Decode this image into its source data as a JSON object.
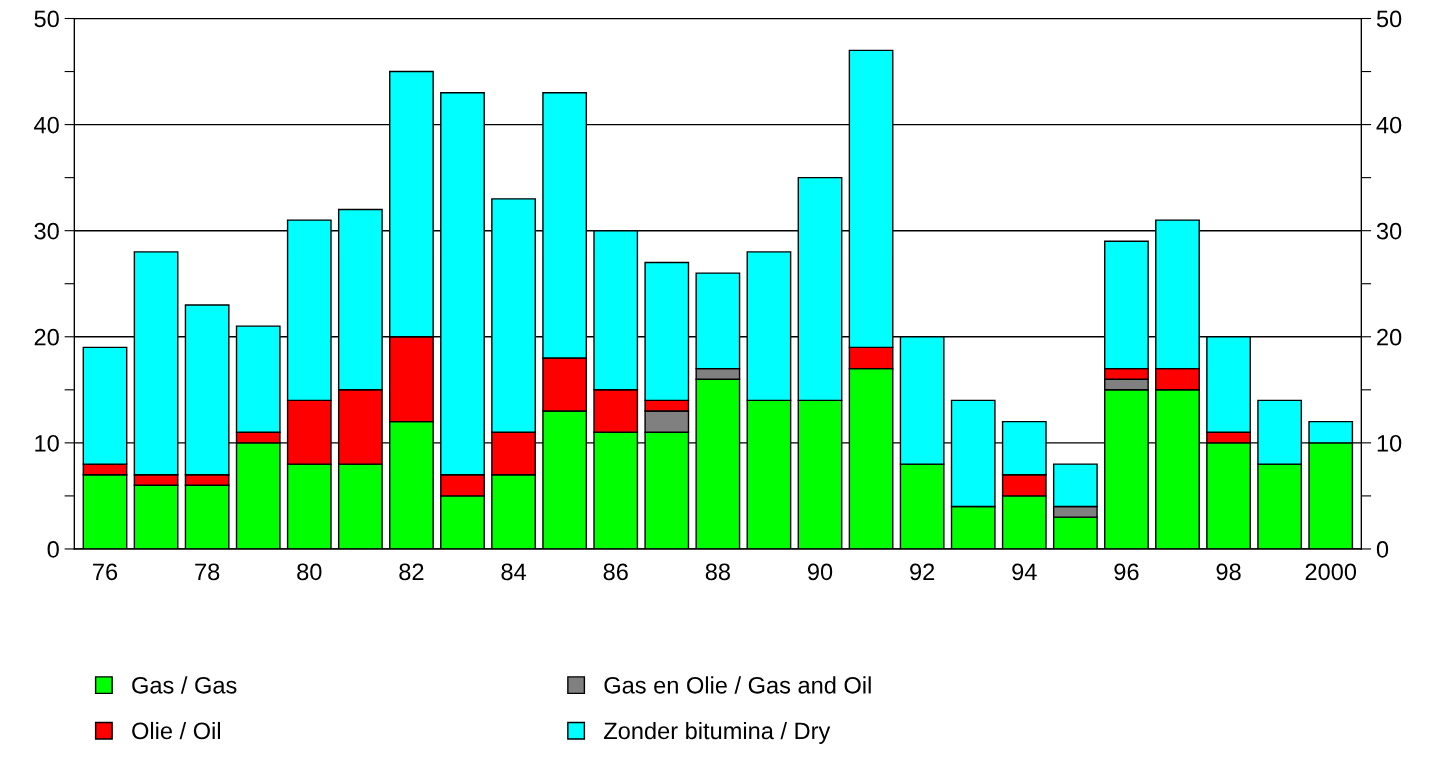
{
  "chart_data": {
    "type": "bar",
    "stacked": true,
    "categories": [
      "76",
      null,
      "78",
      null,
      "80",
      null,
      "82",
      null,
      "84",
      null,
      "86",
      null,
      "88",
      null,
      "90",
      null,
      "92",
      null,
      "94",
      null,
      "96",
      null,
      "98",
      null,
      "2000"
    ],
    "series": [
      {
        "name": "Gas / Gas",
        "color": "#00ff00",
        "values": [
          7,
          6,
          6,
          10,
          8,
          8,
          12,
          5,
          7,
          13,
          11,
          11,
          16,
          14,
          14,
          17,
          8,
          4,
          5,
          3,
          15,
          15,
          10,
          8,
          10
        ]
      },
      {
        "name": "Gas en Olie / Gas and Oil",
        "color": "#808080",
        "values": [
          null,
          null,
          null,
          null,
          null,
          null,
          null,
          null,
          null,
          null,
          null,
          2,
          1,
          null,
          null,
          null,
          null,
          null,
          null,
          1,
          1,
          null,
          null,
          null,
          null
        ]
      },
      {
        "name": "Olie / Oil",
        "color": "#ff0000",
        "values": [
          1,
          1,
          1,
          1,
          6,
          7,
          8,
          2,
          4,
          5,
          4,
          1,
          null,
          null,
          null,
          2,
          null,
          null,
          2,
          null,
          1,
          2,
          1,
          null,
          null
        ]
      },
      {
        "name": "Zonder bitumina / Dry",
        "color": "#00ffff",
        "values": [
          11,
          21,
          16,
          10,
          17,
          17,
          25,
          36,
          22,
          25,
          15,
          13,
          9,
          14,
          21,
          28,
          12,
          10,
          5,
          4,
          12,
          14,
          9,
          6,
          2
        ]
      }
    ],
    "ylim": [
      0,
      50
    ],
    "yticks": [
      0,
      {
        "value": 5,
        "label": null
      },
      10,
      {
        "value": 15,
        "label": null
      },
      20,
      {
        "value": 25,
        "label": null
      },
      30,
      {
        "value": 35,
        "label": null
      },
      40,
      {
        "value": 45,
        "label": null
      },
      50
    ],
    "y2lim": [
      0,
      50
    ],
    "y2ticks": [
      0,
      {
        "value": 5,
        "label": null
      },
      10,
      {
        "value": 15,
        "label": null
      },
      20,
      {
        "value": 25,
        "label": null
      },
      30,
      {
        "value": 35,
        "label": null
      },
      40,
      {
        "value": 45,
        "label": null
      },
      50
    ],
    "grid": "y",
    "legend": "bottom"
  }
}
